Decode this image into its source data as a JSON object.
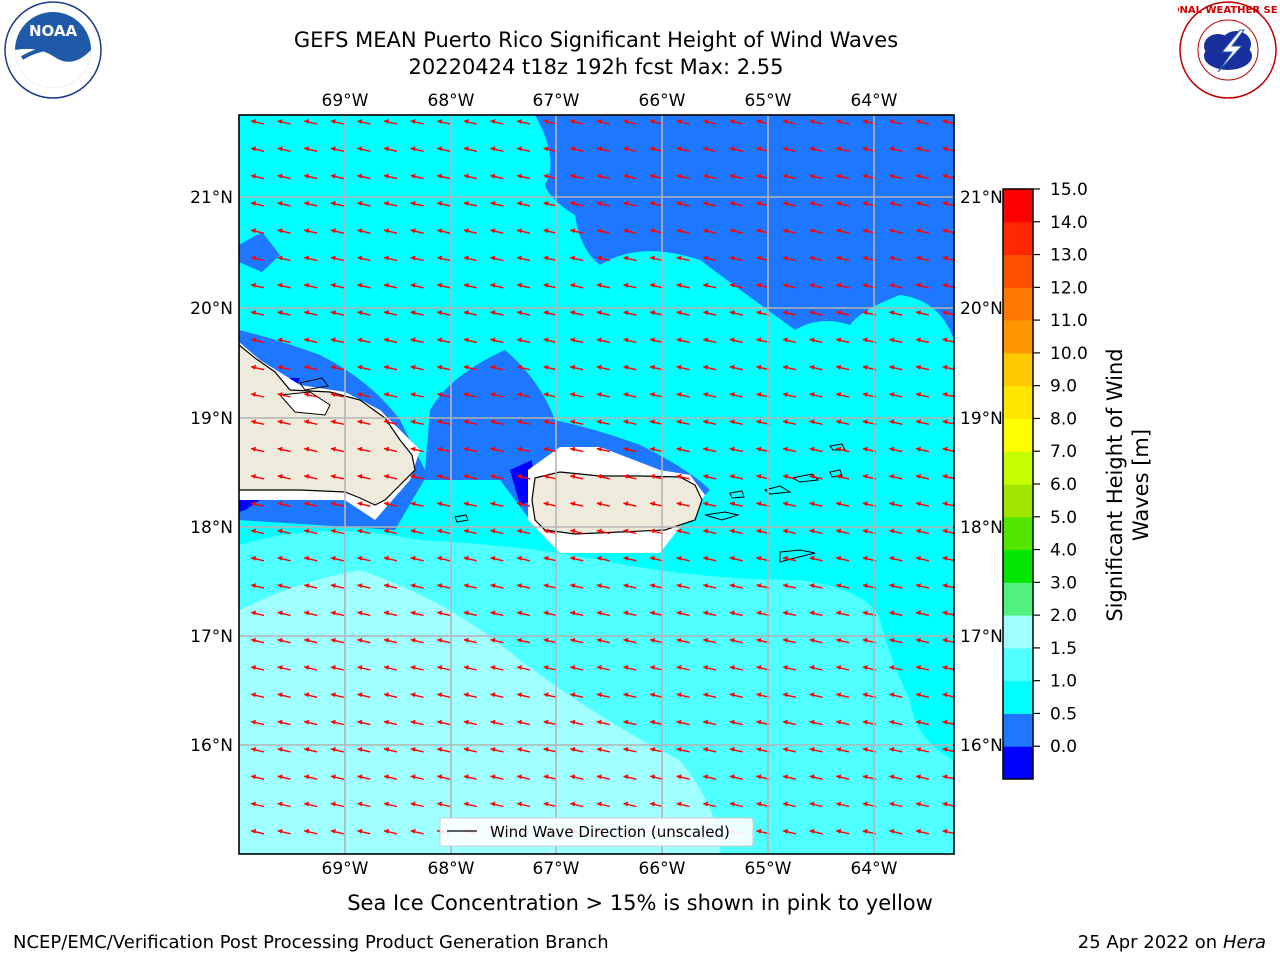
{
  "title_line1": "GEFS MEAN Puerto Rico Significant Height of Wind Waves",
  "title_line2": "20220424 t18z 192h fcst   Max: 2.55",
  "subtitle": "Sea Ice Concentration > 15% is shown in pink to yellow",
  "footer_left": "NCEP/EMC/Verification Post Processing Product Generation Branch",
  "footer_date": "25 Apr 2022 on",
  "footer_host": "Hera",
  "legend_label": "Wind Wave Direction (unscaled)",
  "colorbar_label": "Significant Height of Wind Waves [m]",
  "noaa_logo_text": "NOAA",
  "nws_logo_text": "NATIONAL WEATHER SERVICE",
  "lon_ticks": [
    "69°W",
    "68°W",
    "67°W",
    "66°W",
    "65°W",
    "64°W"
  ],
  "lat_ticks_left": [
    "21°N",
    "20°N",
    "19°N",
    "18°N",
    "17°N",
    "16°N"
  ],
  "lat_ticks_right": [
    "21°N",
    "20°N",
    "19°N",
    "18°N",
    "17°N",
    "16°N"
  ],
  "colorbar_ticks": [
    "15.0",
    "14.0",
    "13.0",
    "12.0",
    "11.0",
    "10.0",
    "9.0",
    "8.0",
    "7.0",
    "6.0",
    "5.0",
    "4.0",
    "3.0",
    "2.0",
    "1.5",
    "1.0",
    "0.5",
    "0.0"
  ],
  "colorbar_colors": [
    "#0000ff",
    "#1e78ff",
    "#00ffff",
    "#50ffff",
    "#a0ffff",
    "#50f080",
    "#00e600",
    "#50e600",
    "#a0e600",
    "#c8ff00",
    "#ffff00",
    "#ffe600",
    "#ffc800",
    "#ff9600",
    "#ff7800",
    "#ff5000",
    "#ff2800",
    "#ff0000"
  ],
  "arrow_color": "#ff0000",
  "land_color": "#efebdc"
}
